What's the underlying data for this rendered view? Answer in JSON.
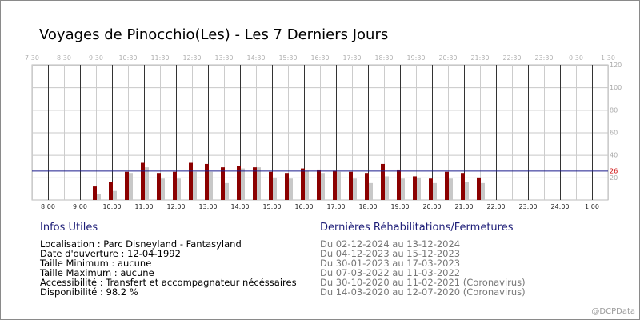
{
  "page": {
    "title": "Voyages de Pinocchio(Les) - Les 7 Derniers Jours",
    "credit": "@DCPData"
  },
  "chart_data": {
    "type": "bar",
    "top_axis_labels": [
      "7:30",
      "8:30",
      "9:30",
      "10:30",
      "11:30",
      "12:30",
      "13:30",
      "14:30",
      "15:30",
      "16:30",
      "17:30",
      "18:30",
      "19:30",
      "20:30",
      "21:30",
      "22:30",
      "23:30",
      "0:30",
      "1:30"
    ],
    "bottom_axis_labels": [
      "8:00",
      "9:00",
      "10:00",
      "11:00",
      "12:00",
      "13:00",
      "14:00",
      "15:00",
      "16:00",
      "17:00",
      "18:00",
      "19:00",
      "20:00",
      "21:00",
      "22:00",
      "23:00",
      "24:00",
      "1:00"
    ],
    "y_ticks": [
      20,
      40,
      60,
      80,
      100,
      120
    ],
    "ylim": [
      0,
      120
    ],
    "x": [
      "9:30",
      "10:00",
      "10:30",
      "11:00",
      "11:30",
      "12:00",
      "12:30",
      "13:00",
      "13:30",
      "14:00",
      "14:30",
      "15:00",
      "15:30",
      "16:00",
      "16:30",
      "17:00",
      "17:30",
      "18:00",
      "18:30",
      "19:00",
      "19:30",
      "20:00",
      "20:30",
      "21:00",
      "21:30"
    ],
    "series": [
      {
        "color": "#8b0000",
        "values": [
          12,
          16,
          25,
          33,
          24,
          25,
          33,
          32,
          29,
          30,
          29,
          25,
          24,
          28,
          27,
          26,
          25,
          24,
          32,
          27,
          21,
          19,
          25,
          24,
          20
        ]
      },
      {
        "color": "#c8c8c8",
        "values": [
          5,
          8,
          24,
          29,
          19,
          19,
          25,
          25,
          15,
          28,
          29,
          20,
          19,
          26,
          24,
          25,
          19,
          15,
          21,
          19,
          20,
          15,
          19,
          16,
          15
        ]
      }
    ],
    "reference_line": {
      "value": 26,
      "label": "26",
      "color": "#1a1a8c"
    }
  },
  "info": {
    "heading": "Infos Utiles",
    "lines": [
      "Localisation : Parc Disneyland - Fantasyland",
      "Date d'ouverture : 12-04-1992",
      "Taille Minimum : aucune",
      "Taille Maximum : aucune",
      "Accessibilité : Transfert et accompagnateur nécéssaires",
      "Disponibilité : 98.2 %"
    ]
  },
  "rehab": {
    "heading": "Dernières Réhabilitations/Fermetures",
    "lines": [
      "Du 02-12-2024 au 13-12-2024",
      "Du 04-12-2023 au 15-12-2023",
      "Du 30-01-2023 au 17-03-2023",
      "Du 07-03-2022 au 11-03-2022",
      "Du 30-10-2020 au 11-02-2021 (Coronavirus)",
      "Du 14-03-2020 au 12-07-2020 (Coronavirus)"
    ]
  }
}
